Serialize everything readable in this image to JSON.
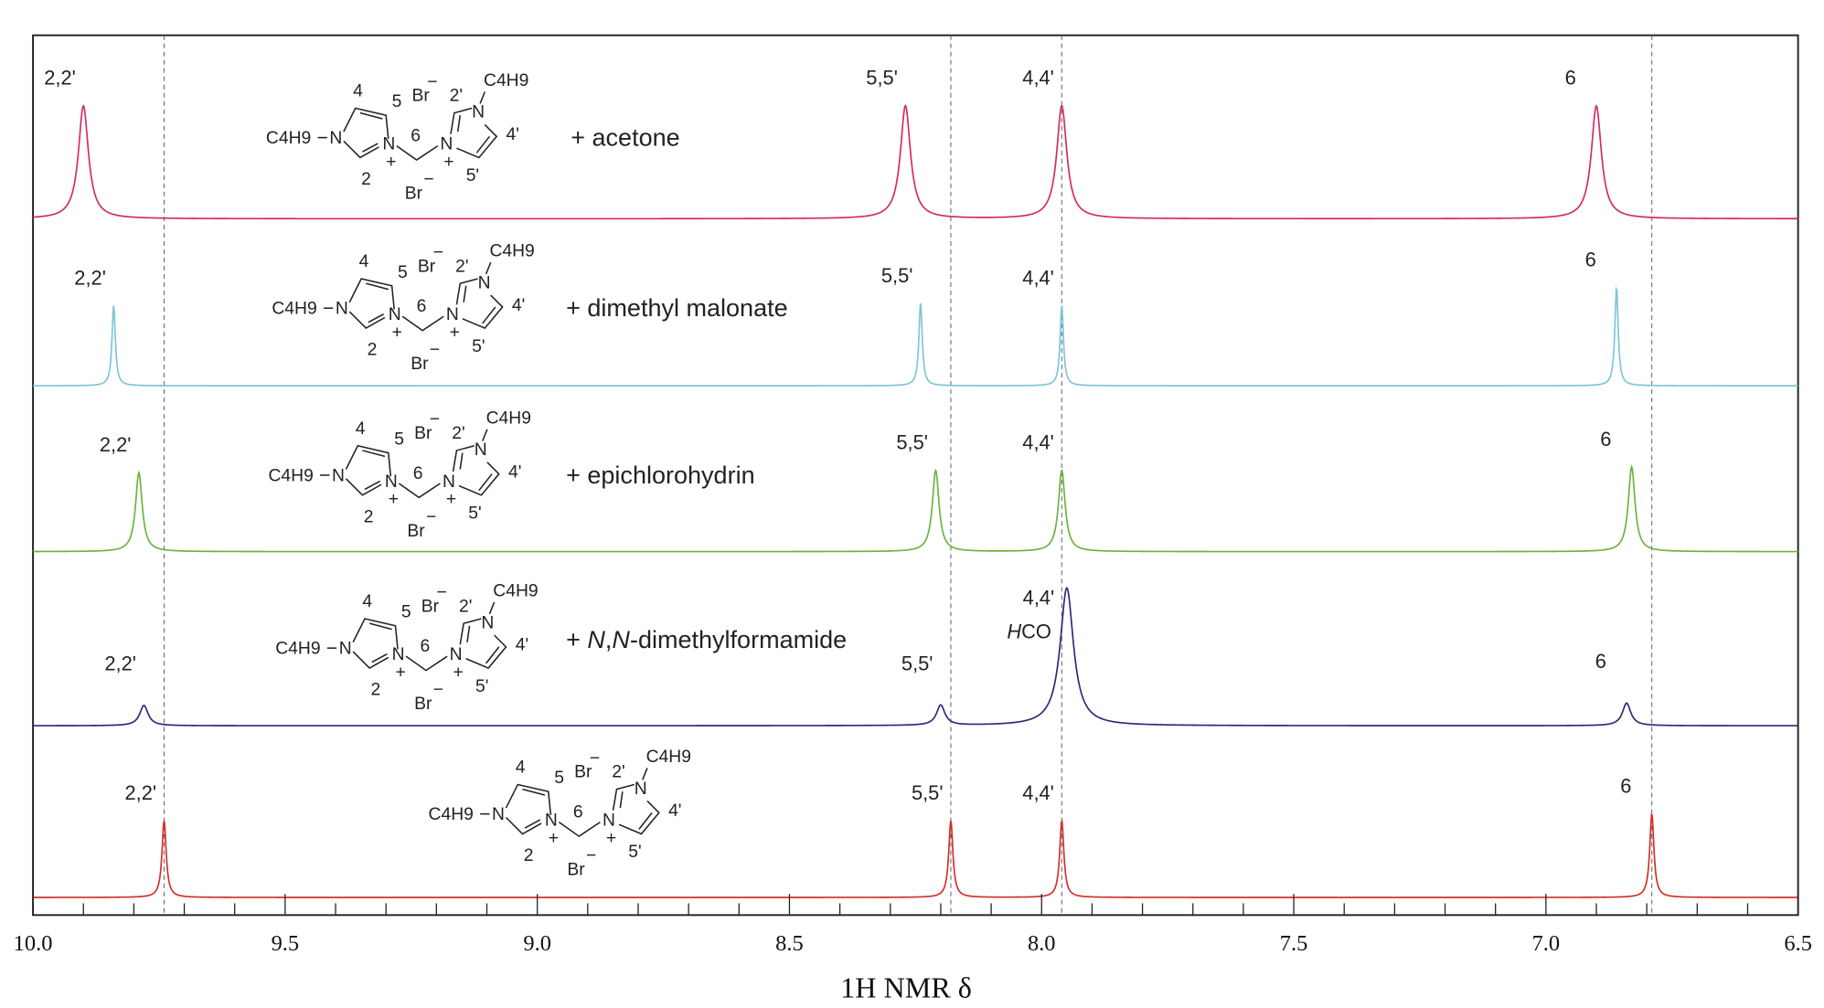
{
  "chart_data": {
    "type": "line",
    "title": "",
    "xlabel": "1H NMR δ",
    "xlabel_parts": {
      "sup": "1",
      "main": "H NMR ",
      "symbol": "δ"
    },
    "xlim": [
      10.0,
      6.5
    ],
    "x_reversed": true,
    "xticks": [
      "10.0",
      "9.5",
      "9.0",
      "8.5",
      "8.0",
      "7.5",
      "7.0",
      "6.5"
    ],
    "xtick_values": [
      10.0,
      9.5,
      9.0,
      8.5,
      8.0,
      7.5,
      7.0,
      6.5
    ],
    "grid": false,
    "reference_lines_ppm": [
      9.74,
      8.18,
      7.96,
      6.79
    ],
    "series": [
      {
        "name": "+ acetone",
        "color": "#d62a63",
        "linewidth_ppm": 0.012,
        "peaks": [
          {
            "ppm": 9.9,
            "intensity": 1.0,
            "label": "2,2'"
          },
          {
            "ppm": 8.27,
            "intensity": 1.0,
            "label": "5,5'"
          },
          {
            "ppm": 7.96,
            "intensity": 1.0,
            "label": "4,4'"
          },
          {
            "ppm": 6.9,
            "intensity": 1.0,
            "label": "6"
          }
        ]
      },
      {
        "name": "+ dimethyl malonate",
        "color": "#7cc6d8",
        "linewidth_ppm": 0.004,
        "peaks": [
          {
            "ppm": 9.84,
            "intensity": 0.71,
            "label": "2,2'"
          },
          {
            "ppm": 8.24,
            "intensity": 0.73,
            "label": "5,5'"
          },
          {
            "ppm": 7.96,
            "intensity": 0.71,
            "label": "4,4'"
          },
          {
            "ppm": 6.86,
            "intensity": 0.87,
            "label": "6"
          }
        ]
      },
      {
        "name": "+ epichlorohydrin",
        "color": "#6cb33f",
        "linewidth_ppm": 0.008,
        "peaks": [
          {
            "ppm": 9.79,
            "intensity": 0.7,
            "label": "2,2'"
          },
          {
            "ppm": 8.21,
            "intensity": 0.72,
            "label": "5,5'"
          },
          {
            "ppm": 7.96,
            "intensity": 0.72,
            "label": "4,4'"
          },
          {
            "ppm": 6.83,
            "intensity": 0.75,
            "label": "6"
          }
        ]
      },
      {
        "name_prefix": "+ ",
        "name_italic": "N",
        "name_mid": ",",
        "name_italic2": "N",
        "name_suffix": "-dimethylformamide",
        "name": "+ N,N-dimethylformamide",
        "color": "#2b2a7c",
        "linewidth_ppm": 0.01,
        "peaks": [
          {
            "ppm": 9.78,
            "intensity": 0.18,
            "label": "2,2'"
          },
          {
            "ppm": 8.2,
            "intensity": 0.18,
            "label": "5,5'"
          },
          {
            "ppm": 7.95,
            "intensity": 1.22,
            "label": "4,4'",
            "extra_label_italic": "H",
            "extra_label": "CO"
          },
          {
            "ppm": 6.84,
            "intensity": 0.2,
            "label": "6"
          }
        ]
      },
      {
        "name": "",
        "color": "#d3302a",
        "linewidth_ppm": 0.005,
        "peaks": [
          {
            "ppm": 9.74,
            "intensity": 0.68,
            "label": "2,2'"
          },
          {
            "ppm": 8.18,
            "intensity": 0.68,
            "label": "5,5'"
          },
          {
            "ppm": 7.96,
            "intensity": 0.68,
            "label": "4,4'"
          },
          {
            "ppm": 6.79,
            "intensity": 0.74,
            "label": "6"
          }
        ]
      }
    ]
  },
  "structure": {
    "substituent": "C4H9",
    "n": "N",
    "bromide": "Br",
    "minus": "−",
    "plus": "+",
    "pos_2": "2",
    "pos_4": "4",
    "pos_5": "5",
    "pos_6": "6",
    "pos_2p": "2'",
    "pos_4p": "4'",
    "pos_5p": "5'"
  }
}
